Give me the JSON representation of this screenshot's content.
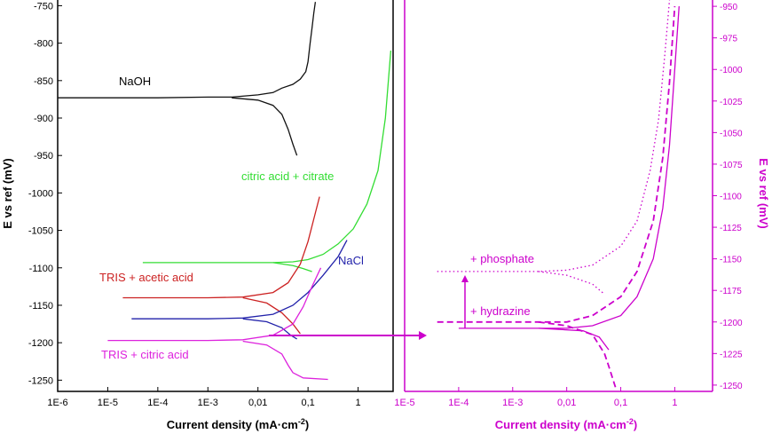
{
  "chart_data": [
    {
      "type": "line",
      "xlabel": "Current density (mA·cm",
      "xlabel_sup": "-2",
      "xlabel_close": ")",
      "ylabel": "E vs ref (mV)",
      "xscale": "log",
      "xlim": [
        1e-06,
        5
      ],
      "ylim": [
        -1265,
        -740
      ],
      "xticks": [
        "1E-6",
        "1E-5",
        "1E-4",
        "1E-3",
        "0,01",
        "0,1",
        "1"
      ],
      "yticks": [
        "-750",
        "-800",
        "-850",
        "-900",
        "-950",
        "-1000",
        "-1050",
        "-1100",
        "-1150",
        "-1200",
        "-1250"
      ],
      "series": [
        {
          "name": "NaOH",
          "color": "#111111",
          "branches": [
            [
              [
                1e-06,
                -873
              ],
              [
                0.0001,
                -873
              ],
              [
                0.001,
                -872
              ],
              [
                0.003,
                -872
              ],
              [
                0.01,
                -869
              ],
              [
                0.02,
                -866
              ],
              [
                0.03,
                -860
              ],
              [
                0.05,
                -855
              ],
              [
                0.07,
                -848
              ],
              [
                0.09,
                -838
              ],
              [
                0.1,
                -825
              ],
              [
                0.11,
                -800
              ],
              [
                0.12,
                -780
              ],
              [
                0.13,
                -760
              ],
              [
                0.14,
                -745
              ]
            ],
            [
              [
                0.003,
                -873
              ],
              [
                0.01,
                -876
              ],
              [
                0.02,
                -883
              ],
              [
                0.03,
                -895
              ],
              [
                0.04,
                -915
              ],
              [
                0.05,
                -935
              ],
              [
                0.06,
                -950
              ]
            ]
          ]
        },
        {
          "name": "citric acid + citrate",
          "color": "#33dd33",
          "branches": [
            [
              [
                5e-05,
                -1093
              ],
              [
                0.001,
                -1093
              ],
              [
                0.005,
                -1093
              ],
              [
                0.02,
                -1093
              ],
              [
                0.05,
                -1092
              ],
              [
                0.1,
                -1089
              ],
              [
                0.2,
                -1082
              ],
              [
                0.4,
                -1068
              ],
              [
                0.8,
                -1048
              ],
              [
                1.5,
                -1015
              ],
              [
                2.5,
                -970
              ],
              [
                3.5,
                -900
              ],
              [
                4.5,
                -810
              ]
            ],
            [
              [
                0.02,
                -1093
              ],
              [
                0.05,
                -1097
              ],
              [
                0.08,
                -1101
              ],
              [
                0.12,
                -1105
              ]
            ]
          ]
        },
        {
          "name": "TRIS + acetic acid",
          "color": "#cc2222",
          "branches": [
            [
              [
                2e-05,
                -1140
              ],
              [
                0.0001,
                -1140
              ],
              [
                0.001,
                -1140
              ],
              [
                0.005,
                -1139
              ],
              [
                0.02,
                -1133
              ],
              [
                0.04,
                -1120
              ],
              [
                0.07,
                -1095
              ],
              [
                0.1,
                -1065
              ],
              [
                0.13,
                -1035
              ],
              [
                0.17,
                -1005
              ]
            ],
            [
              [
                0.005,
                -1140
              ],
              [
                0.015,
                -1147
              ],
              [
                0.03,
                -1160
              ],
              [
                0.05,
                -1175
              ],
              [
                0.07,
                -1188
              ]
            ]
          ]
        },
        {
          "name": "NaCl",
          "color": "#2222aa",
          "branches": [
            [
              [
                3e-05,
                -1168
              ],
              [
                0.0001,
                -1168
              ],
              [
                0.001,
                -1168
              ],
              [
                0.005,
                -1167
              ],
              [
                0.02,
                -1162
              ],
              [
                0.05,
                -1150
              ],
              [
                0.1,
                -1133
              ],
              [
                0.2,
                -1110
              ],
              [
                0.4,
                -1085
              ],
              [
                0.6,
                -1063
              ]
            ],
            [
              [
                0.005,
                -1168
              ],
              [
                0.015,
                -1172
              ],
              [
                0.03,
                -1180
              ],
              [
                0.045,
                -1190
              ],
              [
                0.06,
                -1195
              ]
            ]
          ]
        },
        {
          "name": "TRIS + citric acid",
          "color": "#dd22dd",
          "branches": [
            [
              [
                1e-05,
                -1197
              ],
              [
                0.0001,
                -1197
              ],
              [
                0.001,
                -1197
              ],
              [
                0.005,
                -1196
              ],
              [
                0.02,
                -1190
              ],
              [
                0.05,
                -1175
              ],
              [
                0.08,
                -1152
              ],
              [
                0.12,
                -1125
              ],
              [
                0.18,
                -1100
              ]
            ],
            [
              [
                0.005,
                -1198
              ],
              [
                0.015,
                -1203
              ],
              [
                0.03,
                -1215
              ],
              [
                0.04,
                -1230
              ],
              [
                0.05,
                -1240
              ],
              [
                0.08,
                -1247
              ],
              [
                0.25,
                -1249
              ]
            ]
          ]
        }
      ],
      "annotations": [
        "NaOH",
        "citric acid + citrate",
        "TRIS + acetic acid",
        "NaCl",
        "TRIS + citric acid"
      ]
    },
    {
      "type": "line",
      "xlabel": "Current density (mA·cm",
      "xlabel_sup": "-2",
      "xlabel_close": ")",
      "ylabel": "E vs ref (mV)",
      "xscale": "log",
      "xlim": [
        1e-05,
        5
      ],
      "ylim": [
        -1255,
        -945
      ],
      "xticks": [
        "1E-5",
        "1E-4",
        "1E-3",
        "0,01",
        "0,1",
        "1"
      ],
      "yticks": [
        "-950",
        "-975",
        "-1000",
        "-1025",
        "-1050",
        "-1075",
        "-1100",
        "-1125",
        "-1150",
        "-1175",
        "-1200",
        "-1225",
        "-1250"
      ],
      "axis_color": "#cc00cc",
      "series": [
        {
          "style": "solid",
          "color": "#cc00cc",
          "branches": [
            [
              [
                0.0001,
                -1205
              ],
              [
                0.003,
                -1205
              ],
              [
                0.01,
                -1205
              ],
              [
                0.03,
                -1203
              ],
              [
                0.1,
                -1195
              ],
              [
                0.2,
                -1180
              ],
              [
                0.4,
                -1150
              ],
              [
                0.6,
                -1110
              ],
              [
                0.8,
                -1060
              ],
              [
                1.0,
                -1000
              ],
              [
                1.2,
                -950
              ]
            ],
            [
              [
                0.003,
                -1205
              ],
              [
                0.02,
                -1207
              ],
              [
                0.04,
                -1212
              ],
              [
                0.06,
                -1222
              ]
            ]
          ]
        },
        {
          "style": "dashed",
          "color": "#cc00cc",
          "branches": [
            [
              [
                4e-05,
                -1200
              ],
              [
                0.0003,
                -1200
              ],
              [
                0.003,
                -1200
              ],
              [
                0.01,
                -1200
              ],
              [
                0.03,
                -1195
              ],
              [
                0.1,
                -1180
              ],
              [
                0.2,
                -1160
              ],
              [
                0.4,
                -1120
              ],
              [
                0.6,
                -1070
              ],
              [
                0.8,
                -1010
              ],
              [
                1.0,
                -950
              ]
            ],
            [
              [
                0.003,
                -1200
              ],
              [
                0.01,
                -1203
              ],
              [
                0.03,
                -1210
              ],
              [
                0.05,
                -1225
              ],
              [
                0.06,
                -1235
              ],
              [
                0.08,
                -1252
              ]
            ]
          ]
        },
        {
          "style": "dotted",
          "color": "#cc00cc",
          "branches": [
            [
              [
                4e-05,
                -1160
              ],
              [
                0.0003,
                -1160
              ],
              [
                0.003,
                -1160
              ],
              [
                0.01,
                -1159
              ],
              [
                0.03,
                -1155
              ],
              [
                0.1,
                -1140
              ],
              [
                0.2,
                -1120
              ],
              [
                0.35,
                -1080
              ],
              [
                0.5,
                -1040
              ],
              [
                0.65,
                -990
              ],
              [
                0.8,
                -945
              ]
            ],
            [
              [
                0.003,
                -1160
              ],
              [
                0.01,
                -1163
              ],
              [
                0.03,
                -1170
              ],
              [
                0.05,
                -1178
              ]
            ]
          ]
        }
      ],
      "annotations": [
        "+ phosphate",
        "+ hydrazine"
      ]
    }
  ],
  "colors": {
    "magenta": "#cc00cc",
    "axis": "#000000"
  }
}
